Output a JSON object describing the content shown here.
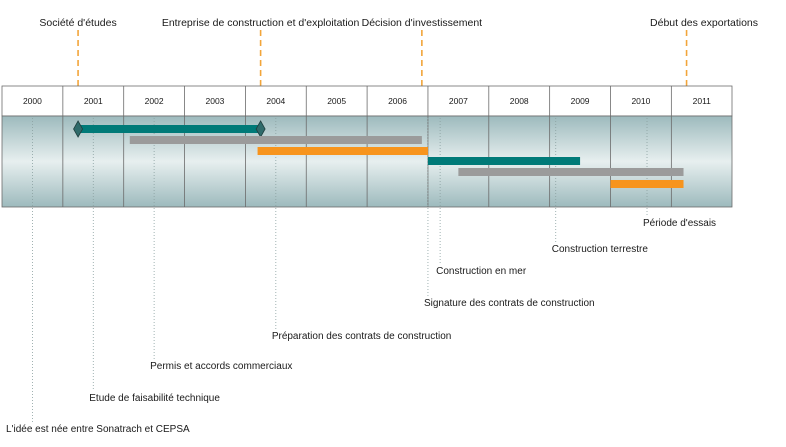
{
  "years": [
    "2000",
    "2001",
    "2002",
    "2003",
    "2004",
    "2005",
    "2006",
    "2007",
    "2008",
    "2009",
    "2010",
    "2011"
  ],
  "milestones": [
    {
      "label": "Société d'études",
      "at": 2001.25
    },
    {
      "label": "Entreprise de construction et d'exploitation",
      "at": 2004.25
    },
    {
      "label": "Décision d'investissement",
      "at": 2006.9
    },
    {
      "label": "Début des exportations",
      "at": 2011.25
    }
  ],
  "bars": [
    {
      "label": "Etude de faisabilité technique",
      "start": 2001.25,
      "end": 2004.25,
      "color": "#007a78",
      "diamonds": true
    },
    {
      "label": "Permis et accords commerciaux",
      "start": 2002.1,
      "end": 2006.9,
      "color": "#9b9b9b"
    },
    {
      "label": "Préparation des contrats de construction",
      "start": 2004.2,
      "end": 2007.0,
      "color": "#f7941d"
    },
    {
      "label": "Construction en mer",
      "start": 2007.0,
      "end": 2009.5,
      "color": "#007a78"
    },
    {
      "label": "Construction terrestre",
      "start": 2007.5,
      "end": 2011.2,
      "color": "#9b9b9b"
    },
    {
      "label": "Période d'essais",
      "start": 2010.0,
      "end": 2011.2,
      "color": "#f7941d"
    }
  ],
  "events": [
    {
      "label": "L'idée est née entre Sonatrach et CEPSA",
      "at": 2000.5
    },
    {
      "label": "Etude de faisabilité technique",
      "at": 2001.5
    },
    {
      "label": "Permis et accords commerciaux",
      "at": 2002.5
    },
    {
      "label": "Préparation des contrats de construction",
      "at": 2004.5
    },
    {
      "label": "Signature des contrats de construction",
      "at": 2007.0
    },
    {
      "label": "Construction en mer",
      "at": 2007.2
    },
    {
      "label": "Construction terrestre",
      "at": 2009.1
    },
    {
      "label": "Période d'essais",
      "at": 2010.6
    }
  ],
  "colors": {
    "teal": "#007a78",
    "gray": "#9b9b9b",
    "orange": "#f7941d",
    "milestone": "#f2a53a"
  }
}
